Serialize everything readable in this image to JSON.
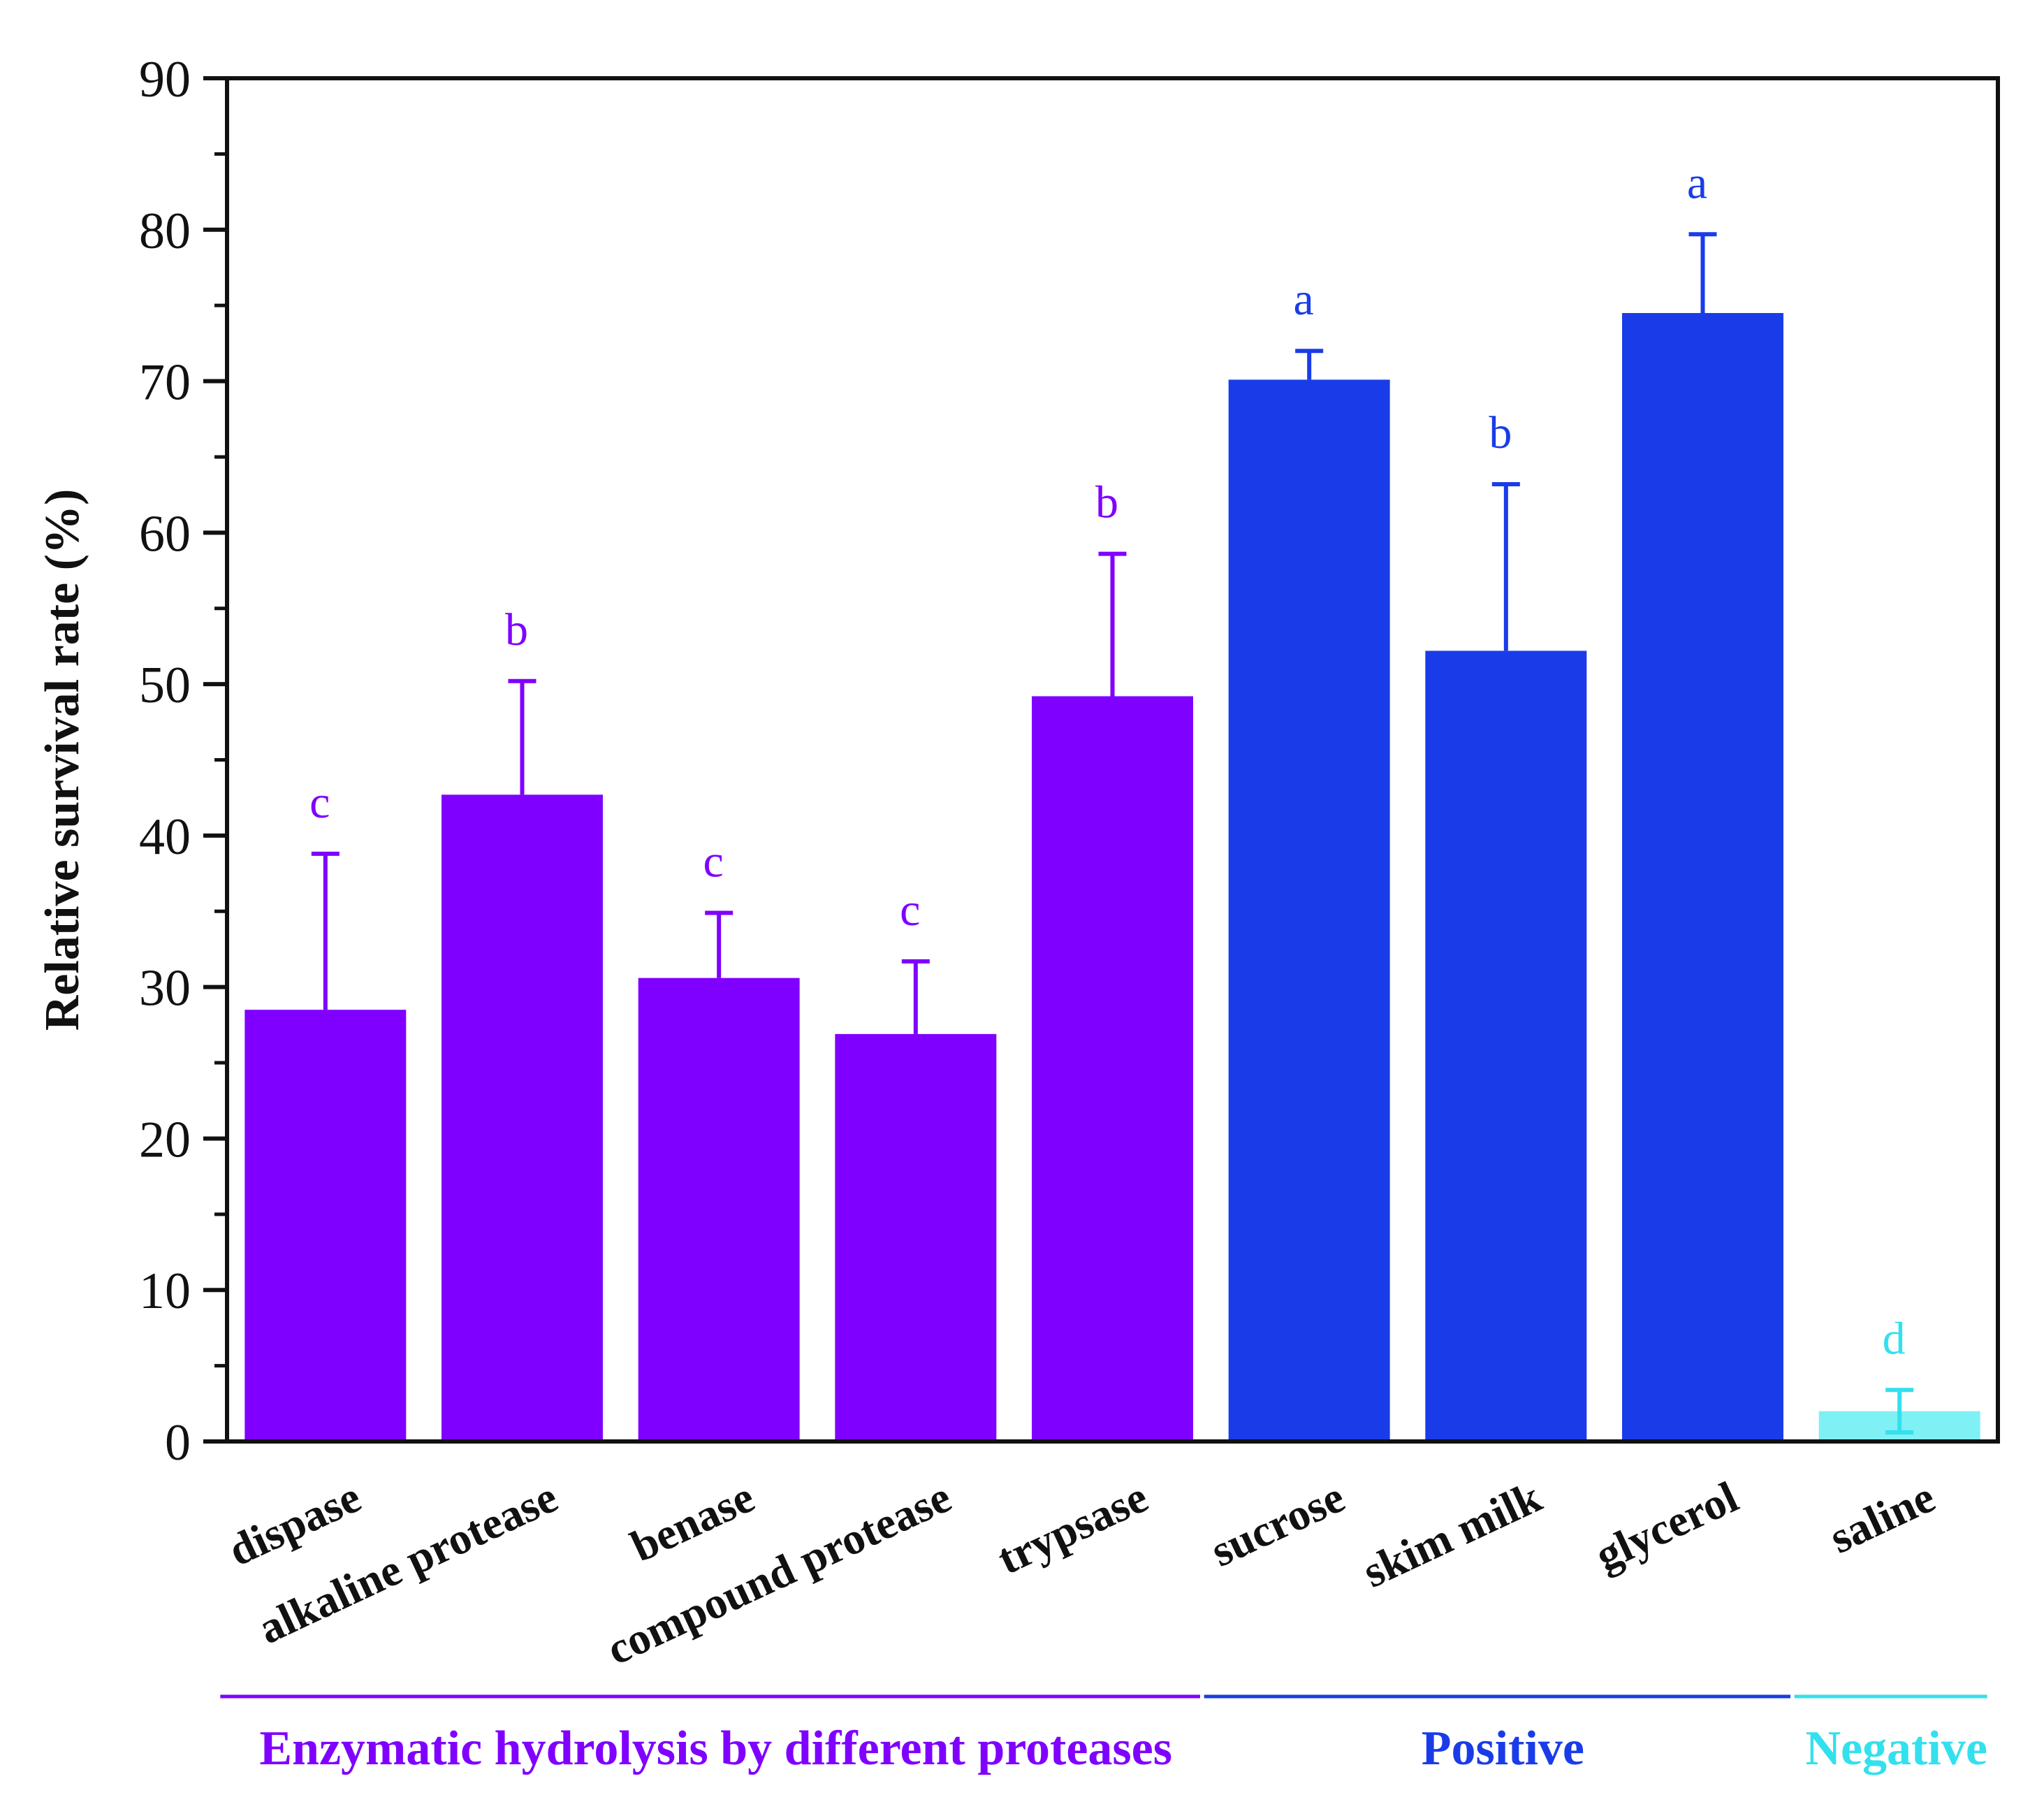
{
  "chart_data": {
    "type": "bar",
    "title": "",
    "xlabel": "",
    "ylabel": "Relative survival rate (%)",
    "ylim": [
      0,
      90
    ],
    "yticks": [
      0,
      10,
      20,
      30,
      40,
      50,
      60,
      70,
      80,
      90
    ],
    "ytick_labels": [
      "0",
      "10",
      "20",
      "30",
      "40",
      "50",
      "60",
      "70",
      "80",
      "90"
    ],
    "grid": false,
    "legend": "none",
    "categories": [
      "dispase",
      "alkaline protease",
      "benase",
      "compound protease",
      "trypsase",
      "sucrose",
      "skim milk",
      "glycerol",
      "saline"
    ],
    "values": [
      28.5,
      42.7,
      30.6,
      26.9,
      49.2,
      70.1,
      52.2,
      74.5,
      2.0
    ],
    "errors": [
      10.3,
      7.5,
      4.3,
      4.8,
      9.4,
      1.9,
      11.0,
      5.2,
      1.4
    ],
    "significance": [
      "c",
      "b",
      "c",
      "c",
      "b",
      "a",
      "b",
      "a",
      "d"
    ],
    "bar_group": [
      0,
      0,
      0,
      0,
      0,
      1,
      1,
      1,
      2
    ],
    "groups": [
      {
        "label": "Enzymatic hydrolysis by different proteases",
        "color": "#7f00ff"
      },
      {
        "label": "Positive",
        "color": "#1a3ce8"
      },
      {
        "label": "Negative",
        "color": "#33e0ee"
      }
    ],
    "negative_fill": "#7ff0f4"
  }
}
